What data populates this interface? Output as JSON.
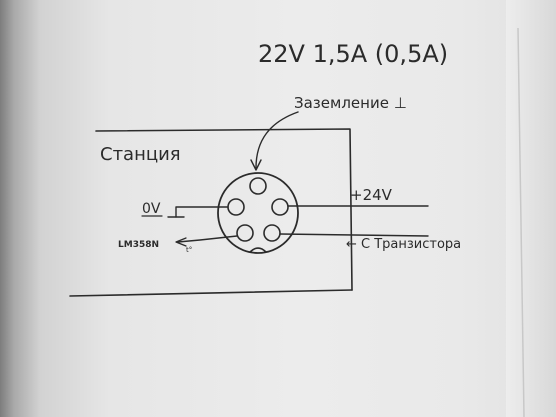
{
  "labels": {
    "supply": "22V   1,5A (0,5A)",
    "ground": "Заземление ⊥",
    "station": "Станция",
    "plus24": "+24V",
    "zero_v": "0V",
    "lm": "LM358N",
    "transistor": "← С Транзистора"
  },
  "colors": {
    "ink": "#2b2b2b",
    "paper": "#ececec"
  }
}
